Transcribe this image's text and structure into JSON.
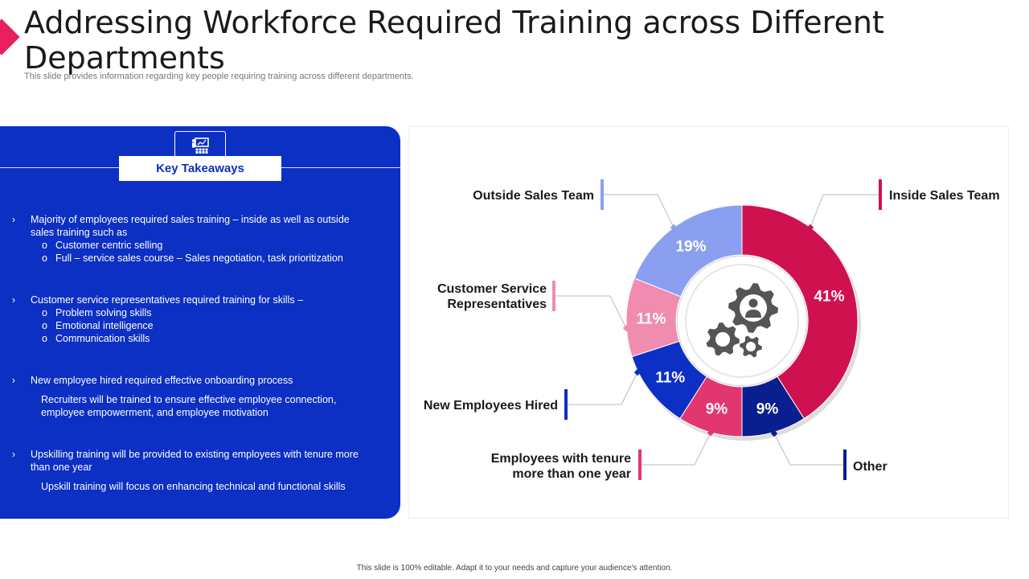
{
  "header": {
    "title": "Addressing Workforce Required Training across Different Departments",
    "subtitle": "This slide provides information regarding key people requiring training across different departments."
  },
  "takeaways": {
    "heading": "Key Takeaways",
    "icon": "presentation-icon",
    "items": [
      {
        "bullet": "›",
        "text": "Majority of employees required sales training – inside as well as outside sales training  such as",
        "subs": [
          "Customer centric selling",
          "Full – service sales course – Sales negotiation, task prioritization"
        ]
      },
      {
        "bullet": "›",
        "text": "Customer service representatives  required training for skills –",
        "subs": [
          "Problem solving skills",
          "Emotional intelligence",
          "Communication  skills"
        ]
      },
      {
        "bullet": "›",
        "text": "New employee hired required effective onboarding process",
        "note": "Recruiters will be trained to ensure effective  employee connection, employee empowerment,  and employee motivation"
      },
      {
        "bullet": "›",
        "text": "Upskilling training will be provided  to existing employees with tenure more than one year",
        "note": "Upskill training will focus on enhancing technical and functional skills"
      }
    ],
    "sub_marker": "o"
  },
  "chart_data": {
    "type": "pie",
    "donut": true,
    "center_icon": "gears-person-icon",
    "slices": [
      {
        "label": "Inside Sales Team",
        "value": 41,
        "value_label": "41%",
        "color": "#d0114f"
      },
      {
        "label": "Other",
        "value": 9,
        "value_label": "9%",
        "color": "#0a1f8f"
      },
      {
        "label": "Employees with tenure more than one year",
        "value": 9,
        "value_label": "9%",
        "color": "#e23670"
      },
      {
        "label": "New Employees Hired",
        "value": 11,
        "value_label": "11%",
        "color": "#0c2fc4"
      },
      {
        "label": "Customer Service Representatives",
        "value": 11,
        "value_label": "11%",
        "color": "#f08cb0"
      },
      {
        "label": "Outside Sales Team",
        "value": 19,
        "value_label": "19%",
        "color": "#8a9ff0"
      }
    ]
  },
  "footer": {
    "text": "This slide is 100% editable.  Adapt it to your needs and capture your audience's attention."
  }
}
